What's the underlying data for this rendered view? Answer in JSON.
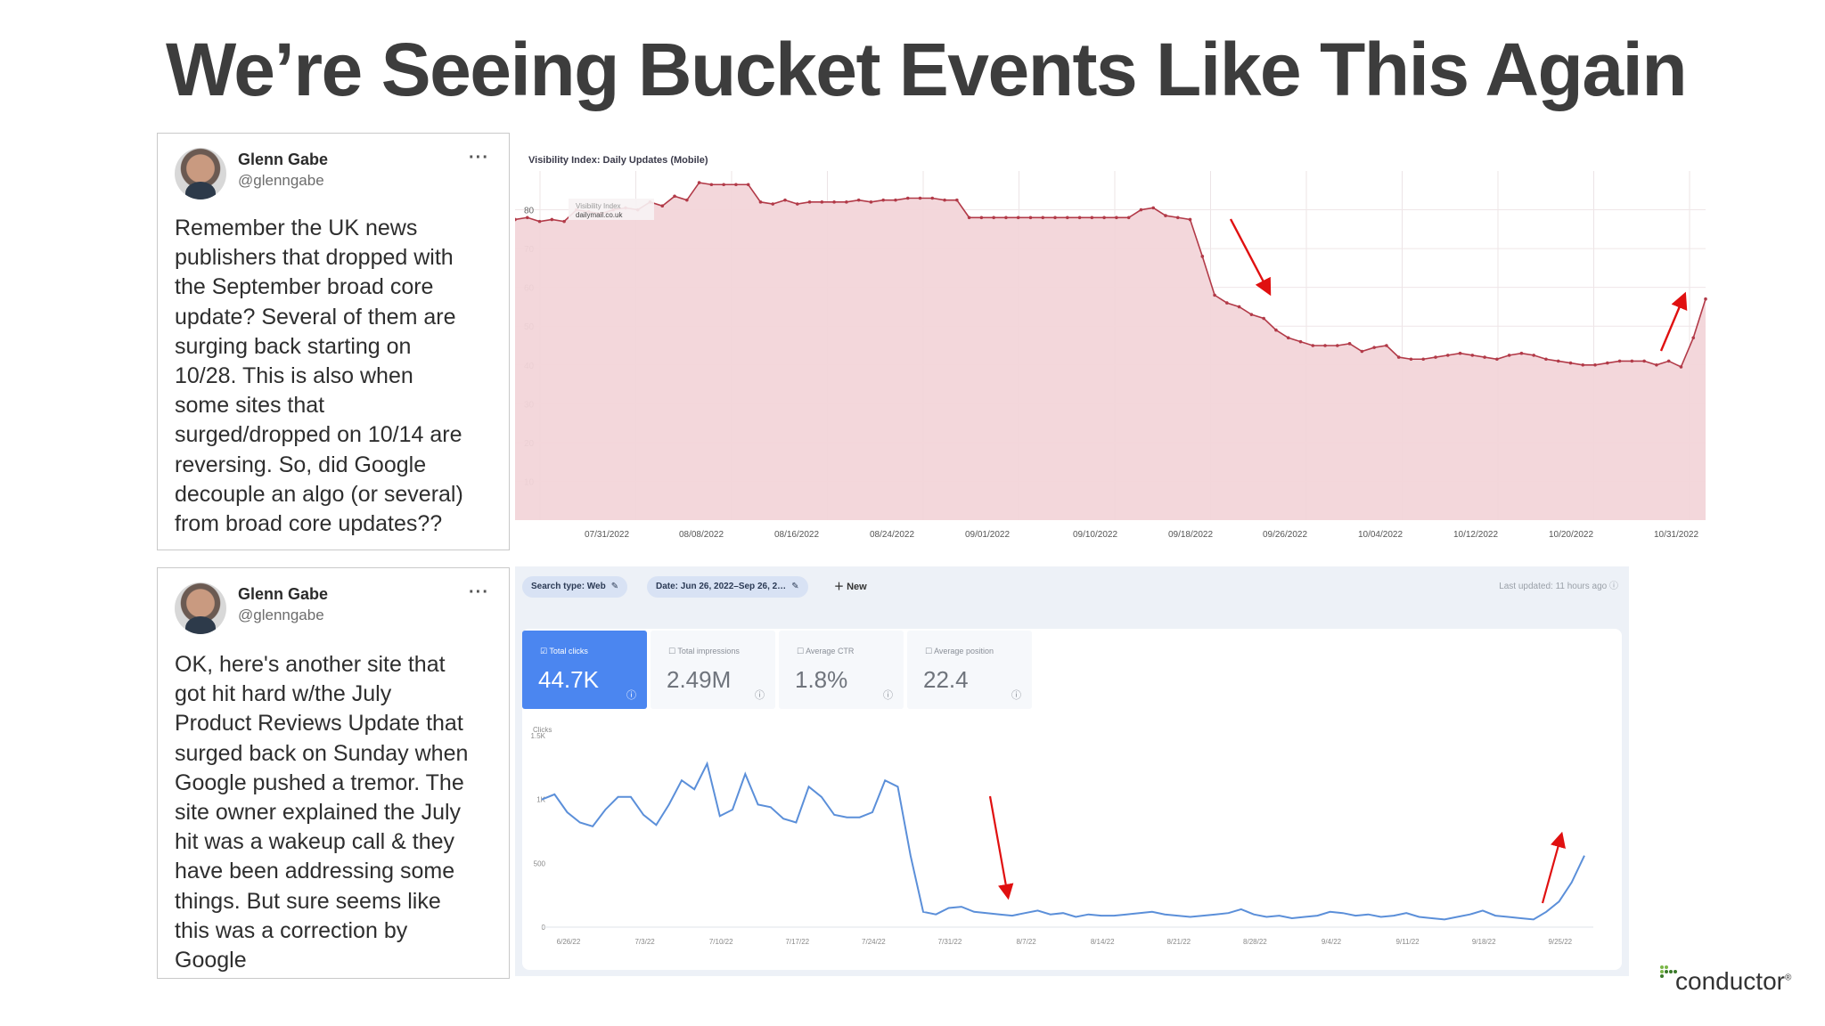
{
  "slide": {
    "title": "We’re Seeing Bucket Events Like This Again"
  },
  "tweets": [
    {
      "name": "Glenn Gabe",
      "handle": "@glenngabe",
      "more": "···",
      "text": "Remember the UK news\npublishers that dropped with\nthe September broad core\nupdate? Several of them are\nsurging back starting on\n10/28. This is also when\nsome sites that\nsurged/dropped on 10/14 are\nreversing. So, did Google\ndecouple an algo (or several)\nfrom broad core updates??"
    },
    {
      "name": "Glenn Gabe",
      "handle": "@glenngabe",
      "more": "···",
      "text": "OK, here's another site that\ngot hit hard w/the July\nProduct Reviews Update that\nsurged back on Sunday when\nGoogle pushed a tremor. The\nsite owner explained the July\nhit was a wakeup call & they\nhave been addressing some\nthings. But sure seems like\nthis was a correction by\nGoogle"
    }
  ],
  "visibility_chart": {
    "title": "Visibility Index: Daily Updates (Mobile)",
    "legend_lines": [
      "Visibility Index",
      "dailymail.co.uk"
    ],
    "colors": {
      "line": "#b23a48",
      "fill": "#f2d5d9",
      "arrow": "#e01010"
    }
  },
  "gsc": {
    "chips": {
      "search_type": "Search type: Web",
      "date": "Date: Jun 26, 2022–Sep 26, 2…",
      "new": "New"
    },
    "last_updated": "Last updated: 11 hours ago",
    "metrics": [
      {
        "label": "Total clicks",
        "value": "44.7K",
        "active": true
      },
      {
        "label": "Total impressions",
        "value": "2.49M",
        "active": false
      },
      {
        "label": "Average CTR",
        "value": "1.8%",
        "active": false
      },
      {
        "label": "Average position",
        "value": "22.4",
        "active": false
      }
    ],
    "y_title": "Clicks",
    "colors": {
      "line": "#5b8fd9",
      "active": "#4b86f0",
      "arrow": "#e01010"
    }
  },
  "logo": {
    "text": "conductor",
    "mark": "®"
  },
  "chart_data": [
    {
      "type": "area",
      "title": "Visibility Index: Daily Updates (Mobile)",
      "legend": [
        "Visibility Index",
        "dailymail.co.uk"
      ],
      "ylim": [
        0,
        90
      ],
      "yticks": [
        10,
        20,
        30,
        40,
        50,
        60,
        70,
        80
      ],
      "xticks": [
        "07/31/2022",
        "08/08/2022",
        "08/16/2022",
        "08/24/2022",
        "09/01/2022",
        "09/10/2022",
        "09/18/2022",
        "09/26/2022",
        "10/04/2022",
        "10/12/2022",
        "10/20/2022",
        "10/31/2022"
      ],
      "series": [
        {
          "values": [
            77.5,
            78,
            77,
            77.5,
            77,
            80,
            79.5,
            79,
            80,
            80.5,
            80,
            82,
            81,
            83.5,
            82.5,
            87,
            86.5,
            86.5,
            86.5,
            86.5,
            82,
            81.5,
            82.5,
            81.5,
            82,
            82,
            82,
            82,
            82.5,
            82,
            82.5,
            82.5,
            83,
            83,
            83,
            82.5,
            82.5,
            78,
            78,
            78,
            78,
            78,
            78,
            78,
            78,
            78,
            78,
            78,
            78,
            78,
            78,
            80,
            80.5,
            78.5,
            78,
            77.5,
            68,
            58,
            56,
            55,
            53,
            52,
            49,
            47,
            46,
            45,
            45,
            45,
            45.5,
            43.5,
            44.5,
            45,
            42,
            41.5,
            41.5,
            42,
            42.5,
            43,
            42.5,
            42,
            41.5,
            42.5,
            43,
            42.5,
            41.5,
            41,
            40.5,
            40,
            40,
            40.5,
            41,
            41,
            41,
            40,
            41,
            39.5,
            47,
            57
          ]
        }
      ],
      "annotations": [
        "drop arrow near 09/22/2022",
        "rise arrow near 10/30/2022"
      ]
    },
    {
      "type": "line",
      "title": "",
      "ylabel": "Clicks",
      "yticks": [
        "0",
        "500",
        "1K",
        "1.5K"
      ],
      "ylim": [
        0,
        1500
      ],
      "xticks": [
        "6/26/22",
        "7/3/22",
        "7/10/22",
        "7/17/22",
        "7/24/22",
        "7/31/22",
        "8/7/22",
        "8/14/22",
        "8/21/22",
        "8/28/22",
        "9/4/22",
        "9/11/22",
        "9/18/22",
        "9/25/22"
      ],
      "series": [
        {
          "name": "Clicks",
          "values": [
            1000,
            1040,
            900,
            820,
            790,
            920,
            1020,
            1020,
            880,
            800,
            960,
            1150,
            1080,
            1280,
            870,
            920,
            1200,
            960,
            940,
            850,
            820,
            1100,
            1020,
            880,
            860,
            860,
            900,
            1150,
            1100,
            560,
            120,
            100,
            150,
            160,
            120,
            110,
            100,
            90,
            110,
            130,
            100,
            110,
            80,
            100,
            90,
            90,
            100,
            110,
            120,
            100,
            90,
            80,
            90,
            100,
            110,
            140,
            100,
            80,
            90,
            70,
            80,
            90,
            120,
            110,
            90,
            100,
            80,
            90,
            110,
            80,
            70,
            60,
            80,
            100,
            130,
            90,
            80,
            70,
            60,
            120,
            200,
            350,
            560
          ]
        }
      ],
      "annotations": [
        "drop arrow near 8/2/22",
        "rise arrow near 9/24/22"
      ]
    }
  ]
}
